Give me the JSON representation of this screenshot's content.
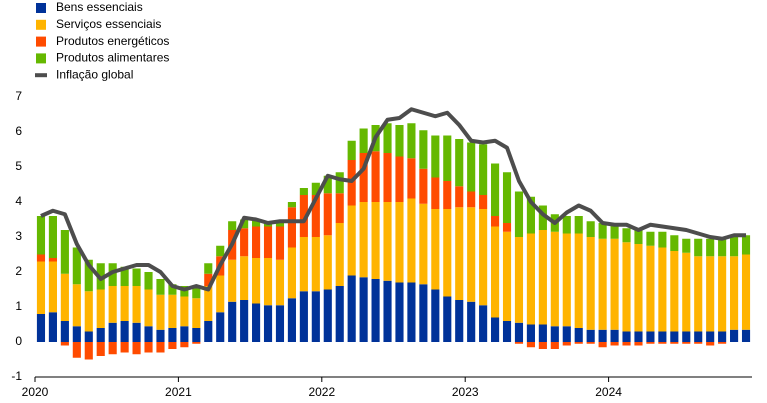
{
  "chart_data": {
    "type": "bar",
    "stacked": true,
    "categories": [
      "2020",
      null,
      null,
      null,
      null,
      null,
      null,
      null,
      null,
      null,
      null,
      null,
      "2021",
      null,
      null,
      null,
      null,
      null,
      null,
      null,
      null,
      null,
      null,
      null,
      "2022",
      null,
      null,
      null,
      null,
      null,
      null,
      null,
      null,
      null,
      null,
      null,
      "2023",
      null,
      null,
      null,
      null,
      null,
      null,
      null,
      null,
      null,
      null,
      null,
      "2024",
      null,
      null,
      null,
      null,
      null,
      null,
      null,
      null,
      null,
      null,
      null
    ],
    "ylim": [
      -1,
      7
    ],
    "yticks": [
      -1,
      0,
      1,
      2,
      3,
      4,
      5,
      6,
      7
    ],
    "series": [
      {
        "name": "Bens essenciais",
        "color": "#003299",
        "type": "bar",
        "values": [
          0.8,
          0.85,
          0.6,
          0.45,
          0.3,
          0.4,
          0.55,
          0.6,
          0.55,
          0.45,
          0.35,
          0.4,
          0.45,
          0.4,
          0.6,
          0.85,
          1.15,
          1.2,
          1.1,
          1.05,
          1.05,
          1.25,
          1.45,
          1.45,
          1.5,
          1.6,
          1.9,
          1.85,
          1.8,
          1.75,
          1.7,
          1.7,
          1.65,
          1.5,
          1.3,
          1.2,
          1.15,
          1.05,
          0.7,
          0.6,
          0.55,
          0.5,
          0.5,
          0.45,
          0.45,
          0.4,
          0.35,
          0.35,
          0.35,
          0.3,
          0.3,
          0.3,
          0.3,
          0.3,
          0.3,
          0.3,
          0.3,
          0.3,
          0.35,
          0.35
        ]
      },
      {
        "name": "Serviços essenciais",
        "color": "#ffb400",
        "type": "bar",
        "values": [
          1.5,
          1.45,
          1.35,
          1.2,
          1.15,
          1.1,
          1.05,
          1.0,
          1.05,
          1.05,
          1.0,
          0.95,
          0.85,
          0.85,
          1.0,
          1.05,
          1.2,
          1.25,
          1.3,
          1.35,
          1.3,
          1.45,
          1.55,
          1.55,
          1.55,
          1.8,
          2.0,
          2.15,
          2.2,
          2.25,
          2.3,
          2.4,
          2.3,
          2.3,
          2.5,
          2.65,
          2.7,
          2.75,
          2.6,
          2.55,
          2.45,
          2.6,
          2.7,
          2.7,
          2.65,
          2.7,
          2.65,
          2.6,
          2.6,
          2.55,
          2.5,
          2.45,
          2.4,
          2.3,
          2.25,
          2.15,
          2.15,
          2.15,
          2.1,
          2.15
        ]
      },
      {
        "name": "Produtos energéticos",
        "color": "#ff4b00",
        "type": "bar",
        "values": [
          0.2,
          0.1,
          -0.1,
          -0.45,
          -0.5,
          -0.4,
          -0.35,
          -0.3,
          -0.35,
          -0.3,
          -0.3,
          -0.2,
          -0.15,
          -0.05,
          0.35,
          0.55,
          0.85,
          0.8,
          0.9,
          0.9,
          0.95,
          1.15,
          1.2,
          1.2,
          1.2,
          0.85,
          1.3,
          1.4,
          1.45,
          1.4,
          1.3,
          1.15,
          1.0,
          0.9,
          0.8,
          0.6,
          0.45,
          0.4,
          0.3,
          0.25,
          -0.05,
          -0.15,
          -0.2,
          -0.2,
          -0.1,
          -0.05,
          -0.05,
          -0.15,
          -0.1,
          -0.1,
          -0.1,
          -0.05,
          -0.05,
          -0.05,
          -0.05,
          -0.05,
          -0.1,
          -0.05,
          0.0,
          0.0
        ]
      },
      {
        "name": "Produtos alimentares",
        "color": "#65b800",
        "type": "bar",
        "values": [
          1.1,
          1.2,
          1.25,
          1.05,
          0.9,
          0.75,
          0.65,
          0.55,
          0.5,
          0.5,
          0.45,
          0.3,
          0.3,
          0.35,
          0.3,
          0.3,
          0.25,
          0.25,
          0.2,
          0.15,
          0.15,
          0.15,
          0.2,
          0.35,
          0.5,
          0.6,
          0.55,
          0.7,
          0.75,
          0.85,
          0.9,
          1.0,
          1.1,
          1.2,
          1.3,
          1.35,
          1.4,
          1.45,
          1.5,
          1.45,
          1.3,
          1.05,
          0.7,
          0.5,
          0.5,
          0.5,
          0.45,
          0.45,
          0.4,
          0.4,
          0.4,
          0.4,
          0.45,
          0.45,
          0.4,
          0.5,
          0.5,
          0.55,
          0.6,
          0.55
        ]
      },
      {
        "name": "Inflação global",
        "color": "#4d4d4d",
        "type": "line",
        "values": [
          3.6,
          3.75,
          3.65,
          2.8,
          2.2,
          1.8,
          2.0,
          2.1,
          2.2,
          2.2,
          2.0,
          1.6,
          1.5,
          1.6,
          1.5,
          2.2,
          2.8,
          3.55,
          3.5,
          3.4,
          3.45,
          3.45,
          3.45,
          4.1,
          4.75,
          4.65,
          4.6,
          4.95,
          5.85,
          6.35,
          6.4,
          6.65,
          6.55,
          6.45,
          6.55,
          6.2,
          5.75,
          5.7,
          5.75,
          5.55,
          4.6,
          4.0,
          3.65,
          3.4,
          3.7,
          3.9,
          3.75,
          3.4,
          3.35,
          3.35,
          3.2,
          3.35,
          3.3,
          3.25,
          3.2,
          3.1,
          3.0,
          2.95,
          3.05,
          3.05
        ]
      }
    ]
  }
}
